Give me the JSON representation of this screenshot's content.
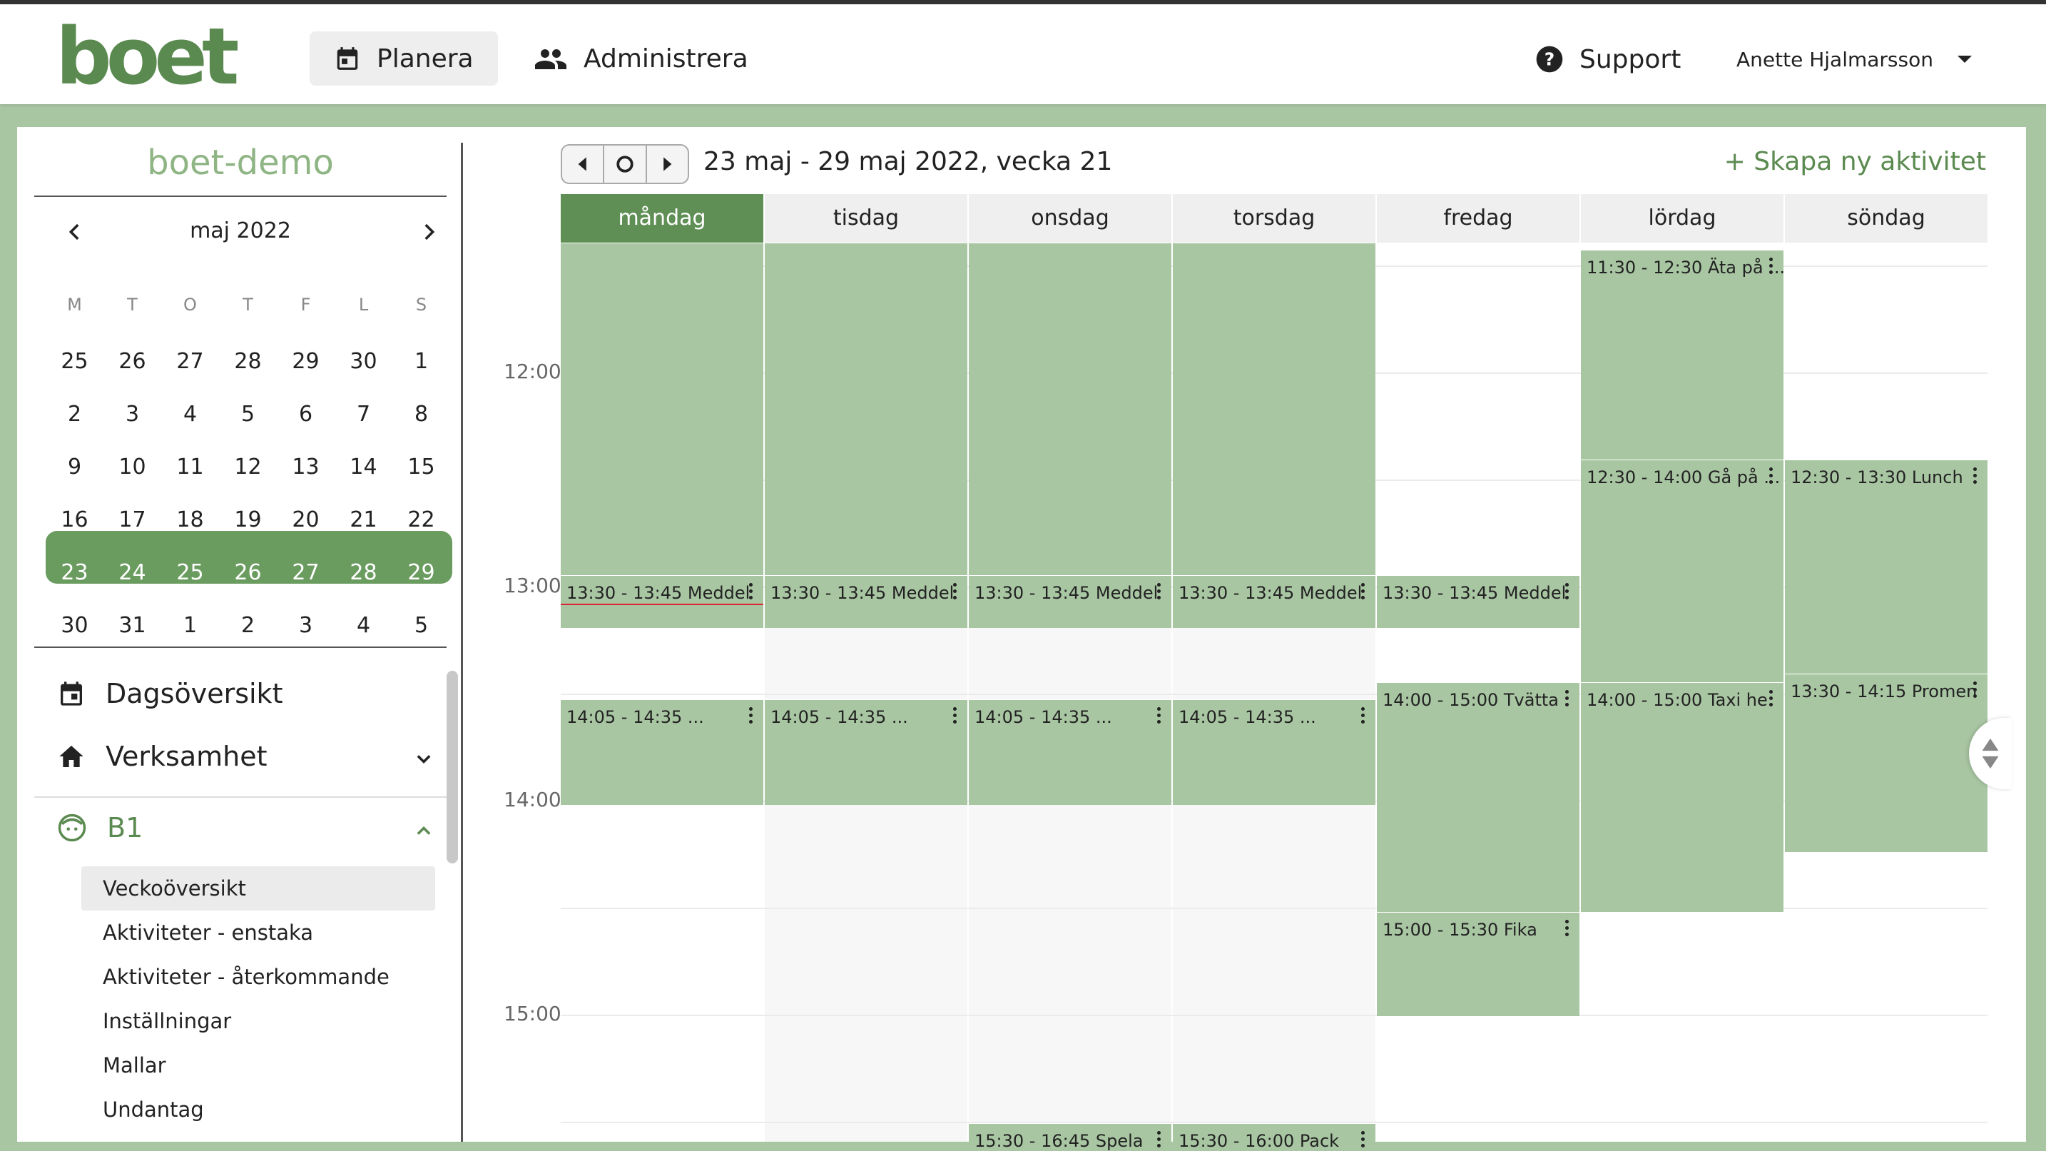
{
  "header": {
    "logo_text": "boet",
    "nav": [
      {
        "label": "Planera",
        "icon": "calendar-icon",
        "active": true
      },
      {
        "label": "Administrera",
        "icon": "people-icon",
        "active": false
      }
    ],
    "support_label": "Support",
    "user_name": "Anette Hjalmarsson"
  },
  "sidebar": {
    "org_name": "boet-demo",
    "mini_calendar": {
      "title": "maj 2022",
      "weekdays": [
        "M",
        "T",
        "O",
        "T",
        "F",
        "L",
        "S"
      ],
      "weeks": [
        [
          "25",
          "26",
          "27",
          "28",
          "29",
          "30",
          "1"
        ],
        [
          "2",
          "3",
          "4",
          "5",
          "6",
          "7",
          "8"
        ],
        [
          "9",
          "10",
          "11",
          "12",
          "13",
          "14",
          "15"
        ],
        [
          "16",
          "17",
          "18",
          "19",
          "20",
          "21",
          "22"
        ],
        [
          "23",
          "24",
          "25",
          "26",
          "27",
          "28",
          "29"
        ],
        [
          "30",
          "31",
          "1",
          "2",
          "3",
          "4",
          "5"
        ]
      ],
      "selected_week_index": 4
    },
    "items": [
      {
        "label": "Dagsöversikt",
        "icon": "calendar-icon"
      },
      {
        "label": "Verksamhet",
        "icon": "home-icon"
      },
      {
        "label": "B1",
        "icon": "face-icon"
      }
    ],
    "subitems": [
      "Veckoöversikt",
      "Aktiviteter - enstaka",
      "Aktiviteter - återkommande",
      "Inställningar",
      "Mallar",
      "Undantag"
    ],
    "active_subitem": "Veckoöversikt"
  },
  "main": {
    "week_title": "23 maj - 29 maj 2022, vecka 21",
    "create_label": "+ Skapa ny aktivitet",
    "days": [
      "måndag",
      "tisdag",
      "onsdag",
      "torsdag",
      "fredag",
      "lördag",
      "söndag"
    ],
    "today_index": 0,
    "time_labels": [
      "12:00",
      "13:00",
      "14:00",
      "15:00"
    ],
    "events": [
      {
        "day": 0,
        "label": ""
      },
      {
        "day": 1,
        "label": ""
      },
      {
        "day": 2,
        "label": ""
      },
      {
        "day": 3,
        "label": ""
      },
      {
        "day": 0,
        "label": "13:30 - 13:45 Meddel"
      },
      {
        "day": 1,
        "label": "13:30 - 13:45 Meddel"
      },
      {
        "day": 2,
        "label": "13:30 - 13:45 Meddel"
      },
      {
        "day": 3,
        "label": "13:30 - 13:45 Meddel"
      },
      {
        "day": 4,
        "label": "13:30 - 13:45 Meddel"
      },
      {
        "day": 0,
        "label": "14:05 - 14:35 ..."
      },
      {
        "day": 1,
        "label": "14:05 - 14:35 ..."
      },
      {
        "day": 2,
        "label": "14:05 - 14:35 ..."
      },
      {
        "day": 3,
        "label": "14:05 - 14:35 ..."
      },
      {
        "day": 4,
        "label": "14:00 - 15:00 Tvätta"
      },
      {
        "day": 4,
        "label": "15:00 - 15:30 Fika"
      },
      {
        "day": 5,
        "label": "11:30 - 12:30 Äta på ..."
      },
      {
        "day": 5,
        "label": "12:30 - 14:00 Gå på ..."
      },
      {
        "day": 5,
        "label": "14:00 - 15:00 Taxi he"
      },
      {
        "day": 6,
        "label": "12:30 - 13:30 Lunch"
      },
      {
        "day": 6,
        "label": "13:30 - 14:15 Promen"
      },
      {
        "day": 2,
        "label": "15:30 - 16:45 Spela"
      },
      {
        "day": 3,
        "label": "15:30 - 16:00 Pack"
      }
    ]
  }
}
